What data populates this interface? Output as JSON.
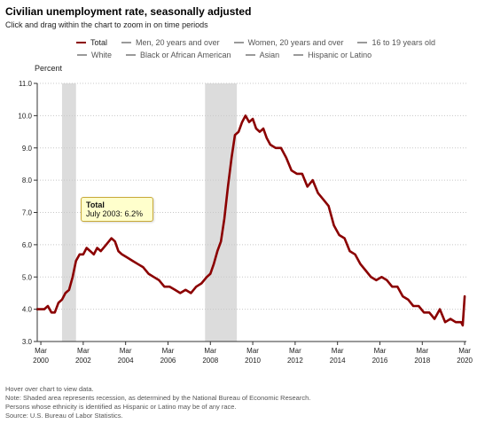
{
  "header": {
    "title": "Civilian unemployment rate, seasonally adjusted",
    "subtitle": "Click and drag within the chart to zoom in on time periods"
  },
  "legend": {
    "items": [
      {
        "label": "Total",
        "active": true
      },
      {
        "label": "Men, 20 years and over",
        "active": false
      },
      {
        "label": "Women, 20 years and over",
        "active": false
      },
      {
        "label": "16 to 19 years old",
        "active": false
      },
      {
        "label": "White",
        "active": false
      },
      {
        "label": "Black or African American",
        "active": false
      },
      {
        "label": "Asian",
        "active": false
      },
      {
        "label": "Hispanic or Latino",
        "active": false
      }
    ]
  },
  "tooltip": {
    "title": "Total",
    "text": "July 2003: 6.2%"
  },
  "footnotes": [
    "Hover over chart to view data.",
    "Note: Shaded area represents recession, as determined by the National Bureau of Economic Research.",
    "Persons whose ethnicity is identified as Hispanic or Latino may be of any race.",
    "Source: U.S. Bureau of Labor Statistics."
  ],
  "colors": {
    "series": "#8b0000",
    "recession": "#dcdcdc",
    "axis": "#333333",
    "grid": "#c8c8c8",
    "inactive_legend": "#9a9a9a"
  },
  "chart_data": {
    "type": "line",
    "title": "Civilian unemployment rate, seasonally adjusted",
    "ylabel": "Percent",
    "xlabel": "",
    "ylim": [
      3.0,
      11.0
    ],
    "yticks": [
      "3.0",
      "4.0",
      "5.0",
      "6.0",
      "7.0",
      "8.0",
      "9.0",
      "10.0",
      "11.0"
    ],
    "xticks": [
      {
        "month": "Mar",
        "year": "2000",
        "t": 2000.17
      },
      {
        "month": "Mar",
        "year": "2002",
        "t": 2002.17
      },
      {
        "month": "Mar",
        "year": "2004",
        "t": 2004.17
      },
      {
        "month": "Mar",
        "year": "2006",
        "t": 2006.17
      },
      {
        "month": "Mar",
        "year": "2008",
        "t": 2008.17
      },
      {
        "month": "Mar",
        "year": "2010",
        "t": 2010.17
      },
      {
        "month": "Mar",
        "year": "2012",
        "t": 2012.17
      },
      {
        "month": "Mar",
        "year": "2014",
        "t": 2014.17
      },
      {
        "month": "Mar",
        "year": "2016",
        "t": 2016.17
      },
      {
        "month": "Mar",
        "year": "2018",
        "t": 2018.17
      },
      {
        "month": "Mar",
        "year": "2020",
        "t": 2020.17
      }
    ],
    "xlim": [
      2000.0,
      2020.25
    ],
    "grid": true,
    "legend": "top",
    "recessions": [
      {
        "start": 2001.17,
        "end": 2001.83
      },
      {
        "start": 2007.92,
        "end": 2009.42
      }
    ],
    "series": [
      {
        "name": "Total",
        "x": [
          2000.0,
          2000.17,
          2000.33,
          2000.5,
          2000.67,
          2000.83,
          2001.0,
          2001.17,
          2001.33,
          2001.5,
          2001.67,
          2001.83,
          2002.0,
          2002.17,
          2002.33,
          2002.5,
          2002.67,
          2002.83,
          2003.0,
          2003.25,
          2003.5,
          2003.67,
          2003.83,
          2004.0,
          2004.25,
          2004.5,
          2004.75,
          2005.0,
          2005.25,
          2005.5,
          2005.75,
          2006.0,
          2006.25,
          2006.5,
          2006.75,
          2007.0,
          2007.25,
          2007.5,
          2007.75,
          2008.0,
          2008.17,
          2008.33,
          2008.5,
          2008.67,
          2008.83,
          2009.0,
          2009.17,
          2009.33,
          2009.5,
          2009.67,
          2009.83,
          2010.0,
          2010.17,
          2010.33,
          2010.5,
          2010.67,
          2010.83,
          2011.0,
          2011.25,
          2011.5,
          2011.75,
          2012.0,
          2012.25,
          2012.5,
          2012.75,
          2013.0,
          2013.25,
          2013.5,
          2013.75,
          2014.0,
          2014.25,
          2014.5,
          2014.75,
          2015.0,
          2015.25,
          2015.5,
          2015.75,
          2016.0,
          2016.25,
          2016.5,
          2016.75,
          2017.0,
          2017.25,
          2017.5,
          2017.75,
          2018.0,
          2018.25,
          2018.5,
          2018.75,
          2019.0,
          2019.25,
          2019.5,
          2019.75,
          2020.0,
          2020.08,
          2020.17
        ],
        "values": [
          4.0,
          4.0,
          4.0,
          4.1,
          3.9,
          3.9,
          4.2,
          4.3,
          4.5,
          4.6,
          5.0,
          5.5,
          5.7,
          5.7,
          5.9,
          5.8,
          5.7,
          5.9,
          5.8,
          6.0,
          6.2,
          6.1,
          5.8,
          5.7,
          5.6,
          5.5,
          5.4,
          5.3,
          5.1,
          5.0,
          4.9,
          4.7,
          4.7,
          4.6,
          4.5,
          4.6,
          4.5,
          4.7,
          4.8,
          5.0,
          5.1,
          5.4,
          5.8,
          6.1,
          6.8,
          7.8,
          8.7,
          9.4,
          9.5,
          9.8,
          10.0,
          9.8,
          9.9,
          9.6,
          9.5,
          9.6,
          9.3,
          9.1,
          9.0,
          9.0,
          8.7,
          8.3,
          8.2,
          8.2,
          7.8,
          8.0,
          7.6,
          7.4,
          7.2,
          6.6,
          6.3,
          6.2,
          5.8,
          5.7,
          5.4,
          5.2,
          5.0,
          4.9,
          5.0,
          4.9,
          4.7,
          4.7,
          4.4,
          4.3,
          4.1,
          4.1,
          3.9,
          3.9,
          3.7,
          4.0,
          3.6,
          3.7,
          3.6,
          3.6,
          3.5,
          4.4
        ]
      }
    ]
  }
}
